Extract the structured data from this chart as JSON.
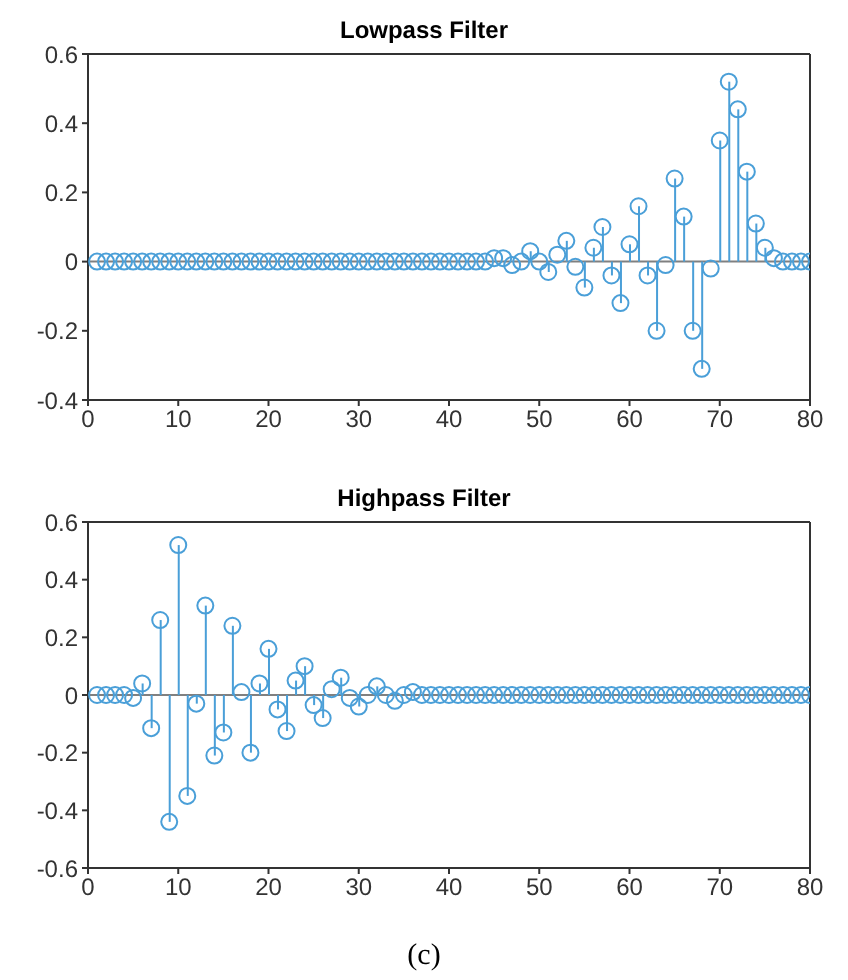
{
  "chart_data": [
    {
      "type": "lollipop",
      "title": "Lowpass Filter",
      "x": [
        1,
        2,
        3,
        4,
        5,
        6,
        7,
        8,
        9,
        10,
        11,
        12,
        13,
        14,
        15,
        16,
        17,
        18,
        19,
        20,
        21,
        22,
        23,
        24,
        25,
        26,
        27,
        28,
        29,
        30,
        31,
        32,
        33,
        34,
        35,
        36,
        37,
        38,
        39,
        40,
        41,
        42,
        43,
        44,
        45,
        46,
        47,
        48,
        49,
        50,
        51,
        52,
        53,
        54,
        55,
        56,
        57,
        58,
        59,
        60,
        61,
        62,
        63,
        64,
        65,
        66,
        67,
        68,
        69,
        70,
        71,
        72,
        73,
        74,
        75,
        76,
        77,
        78,
        79,
        80
      ],
      "series": [
        {
          "color": "#4a9fd8",
          "values": [
            0,
            0,
            0,
            0,
            0,
            0,
            0,
            0,
            0,
            0,
            0,
            0,
            0,
            0,
            0,
            0,
            0,
            0,
            0,
            0,
            0,
            0,
            0,
            0,
            0,
            0,
            0,
            0,
            0,
            0,
            0,
            0,
            0,
            0,
            0,
            0,
            0,
            0,
            0,
            0,
            0,
            0,
            0,
            0,
            0.01,
            0.01,
            -0.01,
            0,
            0.03,
            0,
            -0.03,
            0.02,
            0.06,
            -0.015,
            -0.075,
            0.04,
            0.1,
            -0.04,
            -0.12,
            0.05,
            0.16,
            -0.04,
            -0.2,
            -0.01,
            0.24,
            0.13,
            -0.2,
            -0.31,
            -0.02,
            0.35,
            0.52,
            0.44,
            0.26,
            0.11,
            0.04,
            0.01,
            0,
            0,
            0,
            0
          ]
        }
      ],
      "xlim": [
        0,
        80
      ],
      "xticks": [
        0,
        10,
        20,
        30,
        40,
        50,
        60,
        70,
        80
      ],
      "ylim": [
        -0.4,
        0.6
      ],
      "yticks": [
        -0.4,
        -0.2,
        0,
        0.2,
        0.4,
        0.6
      ],
      "marker": "circle",
      "grid": false,
      "legend": false,
      "ref_lines": [
        {
          "axis": "y",
          "value": 0,
          "color": "#808080"
        }
      ]
    },
    {
      "type": "lollipop",
      "title": "Highpass Filter",
      "x": [
        1,
        2,
        3,
        4,
        5,
        6,
        7,
        8,
        9,
        10,
        11,
        12,
        13,
        14,
        15,
        16,
        17,
        18,
        19,
        20,
        21,
        22,
        23,
        24,
        25,
        26,
        27,
        28,
        29,
        30,
        31,
        32,
        33,
        34,
        35,
        36,
        37,
        38,
        39,
        40,
        41,
        42,
        43,
        44,
        45,
        46,
        47,
        48,
        49,
        50,
        51,
        52,
        53,
        54,
        55,
        56,
        57,
        58,
        59,
        60,
        61,
        62,
        63,
        64,
        65,
        66,
        67,
        68,
        69,
        70,
        71,
        72,
        73,
        74,
        75,
        76,
        77,
        78,
        79,
        80
      ],
      "series": [
        {
          "color": "#4a9fd8",
          "values": [
            0,
            0,
            0,
            0,
            -0.01,
            0.04,
            -0.115,
            0.26,
            -0.44,
            0.52,
            -0.35,
            -0.03,
            0.31,
            -0.21,
            -0.13,
            0.24,
            0.01,
            -0.2,
            0.04,
            0.16,
            -0.05,
            -0.125,
            0.05,
            0.1,
            -0.035,
            -0.08,
            0.02,
            0.06,
            -0.01,
            -0.04,
            0,
            0.03,
            0,
            -0.02,
            0,
            0.01,
            0,
            0,
            0,
            0,
            0,
            0,
            0,
            0,
            0,
            0,
            0,
            0,
            0,
            0,
            0,
            0,
            0,
            0,
            0,
            0,
            0,
            0,
            0,
            0,
            0,
            0,
            0,
            0,
            0,
            0,
            0,
            0,
            0,
            0,
            0,
            0,
            0,
            0,
            0,
            0,
            0,
            0,
            0,
            0
          ]
        }
      ],
      "xlim": [
        0,
        80
      ],
      "xticks": [
        0,
        10,
        20,
        30,
        40,
        50,
        60,
        70,
        80
      ],
      "ylim": [
        -0.6,
        0.6
      ],
      "yticks": [
        -0.6,
        -0.4,
        -0.2,
        0,
        0.2,
        0.4,
        0.6
      ],
      "marker": "circle",
      "grid": false,
      "legend": false,
      "ref_lines": [
        {
          "axis": "y",
          "value": 0,
          "color": "#808080"
        }
      ],
      "annotations": [
        "(c)"
      ]
    }
  ]
}
